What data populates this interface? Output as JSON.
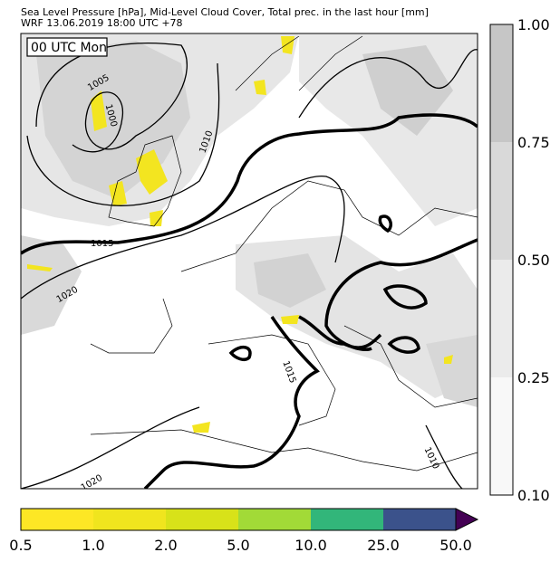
{
  "header": {
    "title": "Sea Level Pressure [hPa], Mid-Level Cloud Cover, Total prec. in the last hour [mm]",
    "subtitle": "WRF 13.06.2019 18:00 UTC +78"
  },
  "map": {
    "time_label": "00 UTC Mon",
    "isobar_labels": [
      "1005",
      "1000",
      "1010",
      "1015",
      "1020",
      "1015",
      "1010",
      "1020"
    ]
  },
  "cloud_colorbar": {
    "ticks": [
      "1.00",
      "0.75",
      "0.50",
      "0.25",
      "0.10"
    ],
    "colors": [
      "#c6c6c6",
      "#d9d9d9",
      "#ebebeb",
      "#f8f8f8"
    ]
  },
  "precip_colorbar": {
    "ticks": [
      "0.5",
      "1.0",
      "2.0",
      "5.0",
      "10.0",
      "25.0",
      "50.0"
    ],
    "colors": [
      "#fde725",
      "#f0e51e",
      "#d8e219",
      "#a2da37",
      "#32b67a",
      "#3b528b",
      "#440154"
    ]
  }
}
